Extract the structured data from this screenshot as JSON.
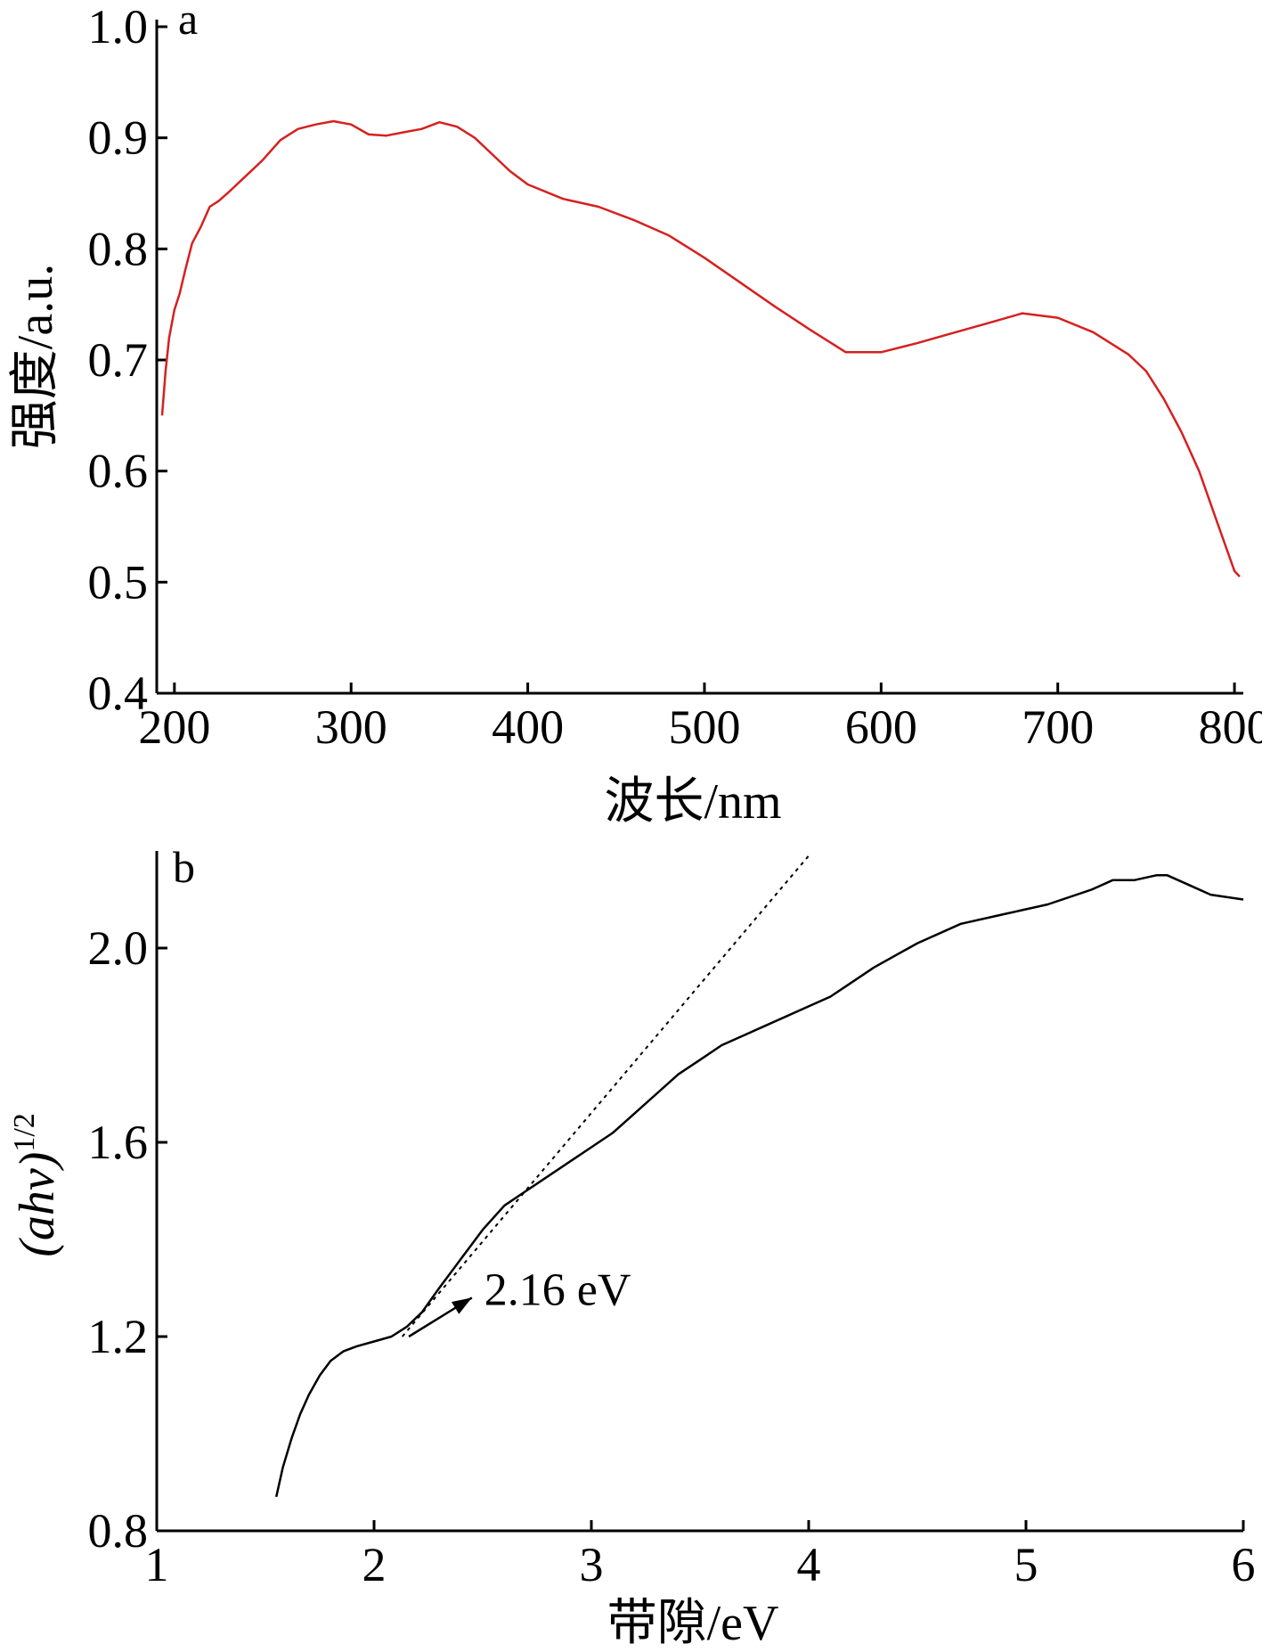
{
  "chart_data": [
    {
      "type": "line",
      "panel_label": "a",
      "xlabel": "波长/nm",
      "ylabel": "强度/a.u.",
      "xlim": [
        190,
        805
      ],
      "ylim": [
        0.4,
        1.0
      ],
      "x_ticks": [
        200,
        300,
        400,
        500,
        600,
        700,
        800
      ],
      "x_tick_labels": [
        "200",
        "300",
        "400",
        "500",
        "600",
        "700",
        "800"
      ],
      "y_ticks": [
        0.4,
        0.5,
        0.6,
        0.7,
        0.8,
        0.9,
        1.0
      ],
      "y_tick_labels": [
        "0.4",
        "0.5",
        "0.6",
        "0.7",
        "0.8",
        "0.9",
        "1.0"
      ],
      "grid": false,
      "series": [
        {
          "color": "#d62020",
          "x": [
            193,
            195,
            197,
            200,
            203,
            206,
            210,
            215,
            220,
            225,
            230,
            240,
            250,
            260,
            270,
            280,
            290,
            300,
            310,
            320,
            330,
            340,
            350,
            360,
            370,
            380,
            390,
            400,
            420,
            440,
            460,
            480,
            500,
            520,
            540,
            560,
            580,
            600,
            620,
            640,
            660,
            680,
            700,
            720,
            740,
            750,
            760,
            770,
            780,
            790,
            800,
            803
          ],
          "y": [
            0.65,
            0.69,
            0.72,
            0.745,
            0.76,
            0.78,
            0.805,
            0.82,
            0.838,
            0.843,
            0.85,
            0.865,
            0.88,
            0.898,
            0.908,
            0.912,
            0.915,
            0.912,
            0.903,
            0.902,
            0.905,
            0.908,
            0.914,
            0.91,
            0.9,
            0.885,
            0.87,
            0.858,
            0.845,
            0.838,
            0.826,
            0.812,
            0.792,
            0.77,
            0.748,
            0.727,
            0.707,
            0.707,
            0.715,
            0.724,
            0.733,
            0.742,
            0.738,
            0.725,
            0.705,
            0.69,
            0.665,
            0.635,
            0.6,
            0.555,
            0.51,
            0.505
          ]
        }
      ]
    },
    {
      "type": "line",
      "panel_label": "b",
      "xlabel": "带隙/eV",
      "ylabel_main": "(ahv)",
      "ylabel_sup": "1/2",
      "xlim": [
        1,
        6
      ],
      "ylim": [
        0.8,
        2.2
      ],
      "x_ticks": [
        1,
        2,
        3,
        4,
        5,
        6
      ],
      "x_tick_labels": [
        "1",
        "2",
        "3",
        "4",
        "5",
        "6"
      ],
      "y_ticks": [
        0.8,
        1.2,
        1.6,
        2.0
      ],
      "y_tick_labels": [
        "0.8",
        "1.2",
        "1.6",
        "2.0"
      ],
      "grid": false,
      "series": [
        {
          "color": "#000000",
          "x": [
            1.55,
            1.58,
            1.62,
            1.66,
            1.7,
            1.75,
            1.8,
            1.86,
            1.92,
            2.0,
            2.08,
            2.15,
            2.22,
            2.3,
            2.4,
            2.5,
            2.6,
            2.7,
            2.8,
            2.9,
            3.0,
            3.1,
            3.2,
            3.3,
            3.4,
            3.5,
            3.6,
            3.7,
            3.8,
            3.9,
            4.0,
            4.1,
            4.2,
            4.3,
            4.5,
            4.7,
            4.9,
            5.1,
            5.3,
            5.4,
            5.5,
            5.6,
            5.65,
            5.75,
            5.85,
            6.0
          ],
          "y": [
            0.87,
            0.93,
            0.99,
            1.04,
            1.08,
            1.12,
            1.15,
            1.17,
            1.18,
            1.19,
            1.2,
            1.22,
            1.25,
            1.3,
            1.36,
            1.42,
            1.47,
            1.5,
            1.53,
            1.56,
            1.59,
            1.62,
            1.66,
            1.7,
            1.74,
            1.77,
            1.8,
            1.82,
            1.84,
            1.86,
            1.88,
            1.9,
            1.93,
            1.96,
            2.01,
            2.05,
            2.07,
            2.09,
            2.12,
            2.14,
            2.14,
            2.15,
            2.15,
            2.13,
            2.11,
            2.1
          ]
        }
      ],
      "tangent": {
        "x": [
          2.13,
          4.0
        ],
        "y": [
          1.2,
          2.19
        ]
      },
      "annotation": {
        "text": "2.16 eV",
        "arrow_from": [
          2.16,
          1.2
        ],
        "arrow_to": [
          2.45,
          1.28
        ]
      }
    }
  ]
}
